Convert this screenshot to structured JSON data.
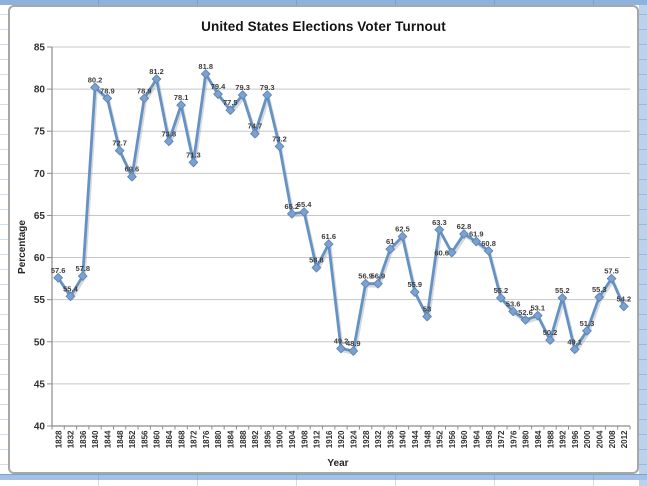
{
  "chart": {
    "title": "United States Elections Voter Turnout"
  },
  "chart_data": {
    "type": "line",
    "title": "United States Elections Voter Turnout",
    "xlabel": "Year",
    "ylabel": "Percentage",
    "ylim": [
      40,
      85
    ],
    "y_ticks": [
      40,
      45,
      50,
      55,
      60,
      65,
      70,
      75,
      80,
      85
    ],
    "grid": true,
    "legend": "none",
    "marker": "diamond",
    "data_labels": true,
    "categories": [
      "1828",
      "1832",
      "1836",
      "1840",
      "1844",
      "1848",
      "1852",
      "1856",
      "1860",
      "1864",
      "1868",
      "1872",
      "1876",
      "1880",
      "1884",
      "1888",
      "1892",
      "1896",
      "1900",
      "1904",
      "1908",
      "1912",
      "1916",
      "1920",
      "1924",
      "1928",
      "1932",
      "1936",
      "1940",
      "1944",
      "1948",
      "1952",
      "1956",
      "1960",
      "1964",
      "1968",
      "1972",
      "1976",
      "1980",
      "1984",
      "1988",
      "1992",
      "1996",
      "2000",
      "2004",
      "2008",
      "2012"
    ],
    "values": [
      57.6,
      55.4,
      57.8,
      80.2,
      78.9,
      72.7,
      69.6,
      78.9,
      81.2,
      73.8,
      78.1,
      71.3,
      81.8,
      79.4,
      77.5,
      79.3,
      74.7,
      79.3,
      73.2,
      65.2,
      65.4,
      58.8,
      61.6,
      49.2,
      48.9,
      56.9,
      56.9,
      61,
      62.5,
      55.9,
      53,
      63.3,
      60.6,
      62.8,
      61.9,
      60.8,
      55.2,
      53.6,
      52.6,
      53.1,
      50.2,
      55.2,
      49.1,
      51.3,
      55.3,
      57.5,
      54.2
    ],
    "colors": {
      "line": "#6492c6",
      "marker_fill": "#7ba1d0",
      "marker_stroke": "#5d84b4",
      "shadow": "#9a9a9a",
      "gridline": "#c7c7c7",
      "axis": "#8c8c8c",
      "tick_text": "#2f2f2f",
      "data_label": "#3d3d3d"
    }
  },
  "worksheet": {
    "gridline_color": "#cfdff2",
    "frame_color": "#8fb2dd"
  }
}
